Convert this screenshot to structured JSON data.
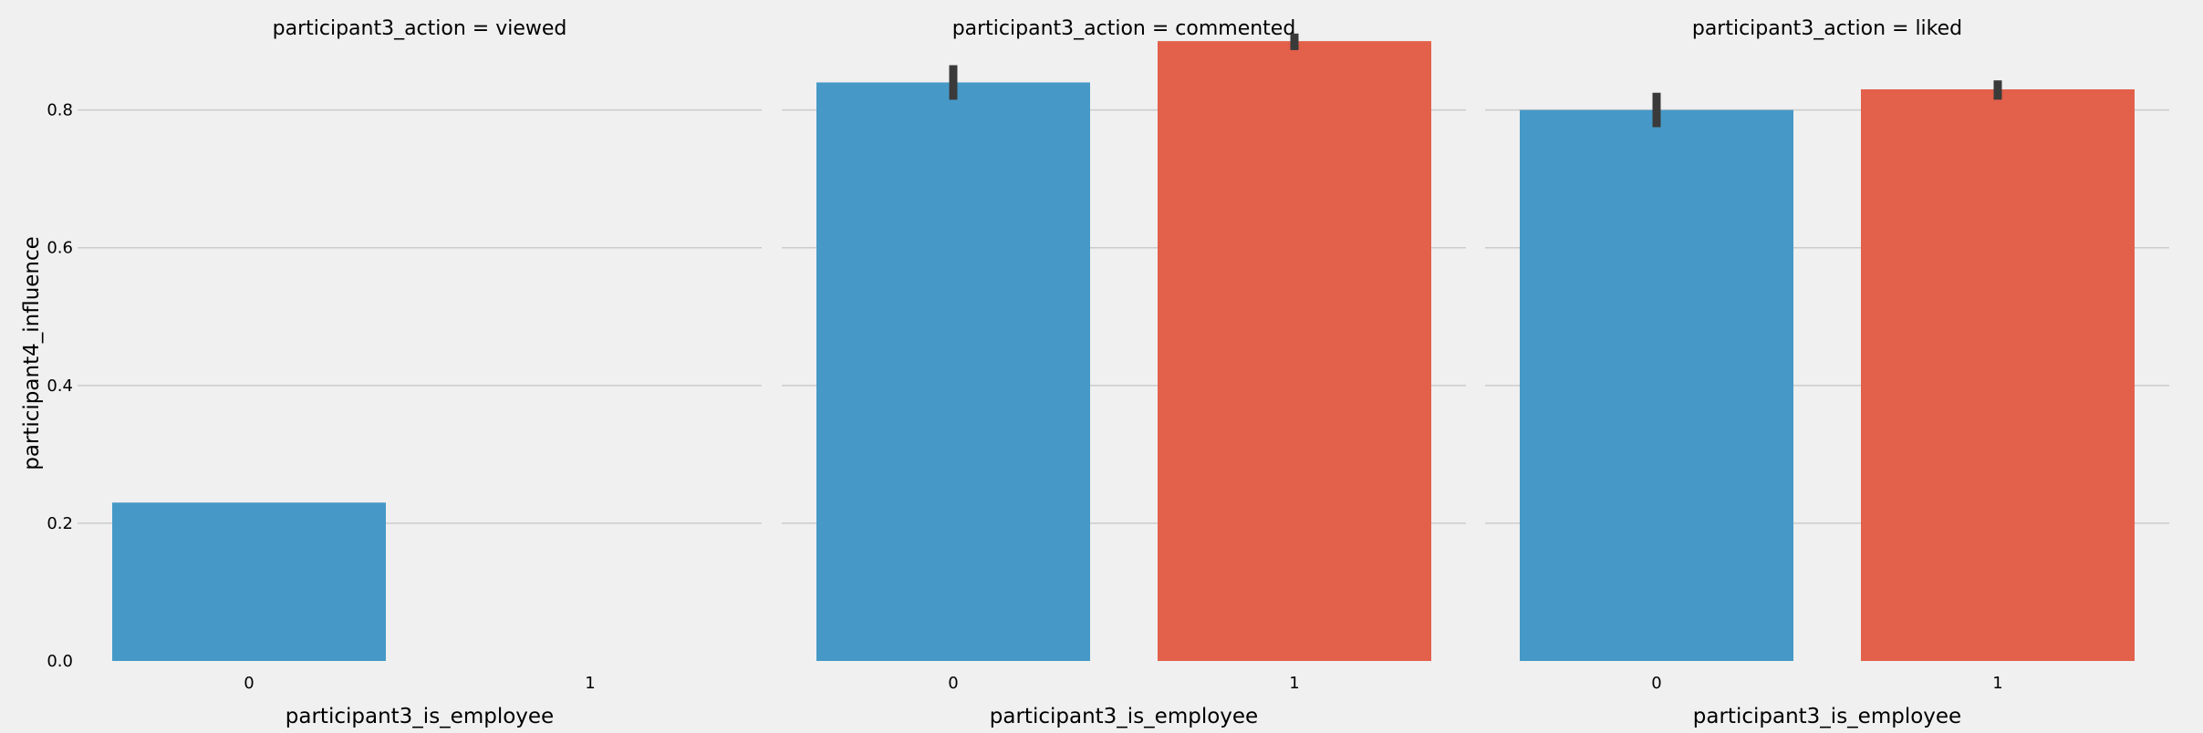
{
  "chart_data": {
    "type": "bar",
    "ylabel": "participant4_influence",
    "ylim": [
      0,
      0.92
    ],
    "yticks": [
      "0.0",
      "0.2",
      "0.4",
      "0.6",
      "0.8"
    ],
    "ytick_values": [
      0,
      0.2,
      0.4,
      0.6,
      0.8
    ],
    "grid": "horizontal",
    "colors": {
      "0": "#4699c7",
      "1": "#e3604a",
      "errorbar": "#3a3a3a"
    },
    "panels": [
      {
        "title": "participant3_action = viewed",
        "xlabel": "participant3_is_employee",
        "categories": [
          "0",
          "1"
        ],
        "values": [
          0.23,
          null
        ],
        "errors": [
          null,
          null
        ]
      },
      {
        "title": "participant3_action = commented",
        "xlabel": "participant3_is_employee",
        "categories": [
          "0",
          "1"
        ],
        "values": [
          0.84,
          0.9
        ],
        "errors": [
          [
            0.815,
            0.865
          ],
          [
            0.887,
            0.911
          ]
        ]
      },
      {
        "title": "participant3_action = liked",
        "xlabel": "participant3_is_employee",
        "categories": [
          "0",
          "1"
        ],
        "values": [
          0.8,
          0.83
        ],
        "errors": [
          [
            0.775,
            0.825
          ],
          [
            0.815,
            0.843
          ]
        ]
      }
    ]
  }
}
